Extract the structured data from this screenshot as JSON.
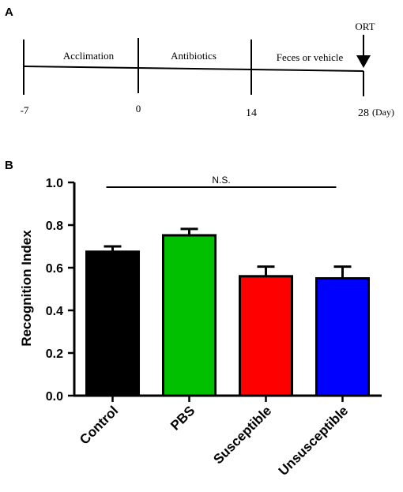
{
  "panel_a": {
    "label": "A",
    "periods": [
      "Acclimation",
      "Antibiotics",
      "Feces or vehicle"
    ],
    "ticks": [
      "-7",
      "0",
      "14",
      "28"
    ],
    "unit": "(Day)",
    "event": "ORT"
  },
  "panel_b": {
    "label": "B"
  },
  "chart_data": {
    "type": "bar",
    "categories": [
      "Control",
      "PBS",
      "Susceptible",
      "Unsusceptible"
    ],
    "values": [
      0.675,
      0.752,
      0.56,
      0.55
    ],
    "errors": [
      0.025,
      0.03,
      0.045,
      0.055
    ],
    "colors": [
      "#000000",
      "#00c000",
      "#ff0000",
      "#0000ff"
    ],
    "title": "",
    "xlabel": "",
    "ylabel": "Recognition Index",
    "ylim": [
      0,
      1.0
    ],
    "yticks": [
      "0.0",
      "0.2",
      "0.4",
      "0.6",
      "0.8",
      "1.0"
    ],
    "significance": {
      "text": "N.S.",
      "from": "Control",
      "to": "Unsusceptible"
    }
  }
}
